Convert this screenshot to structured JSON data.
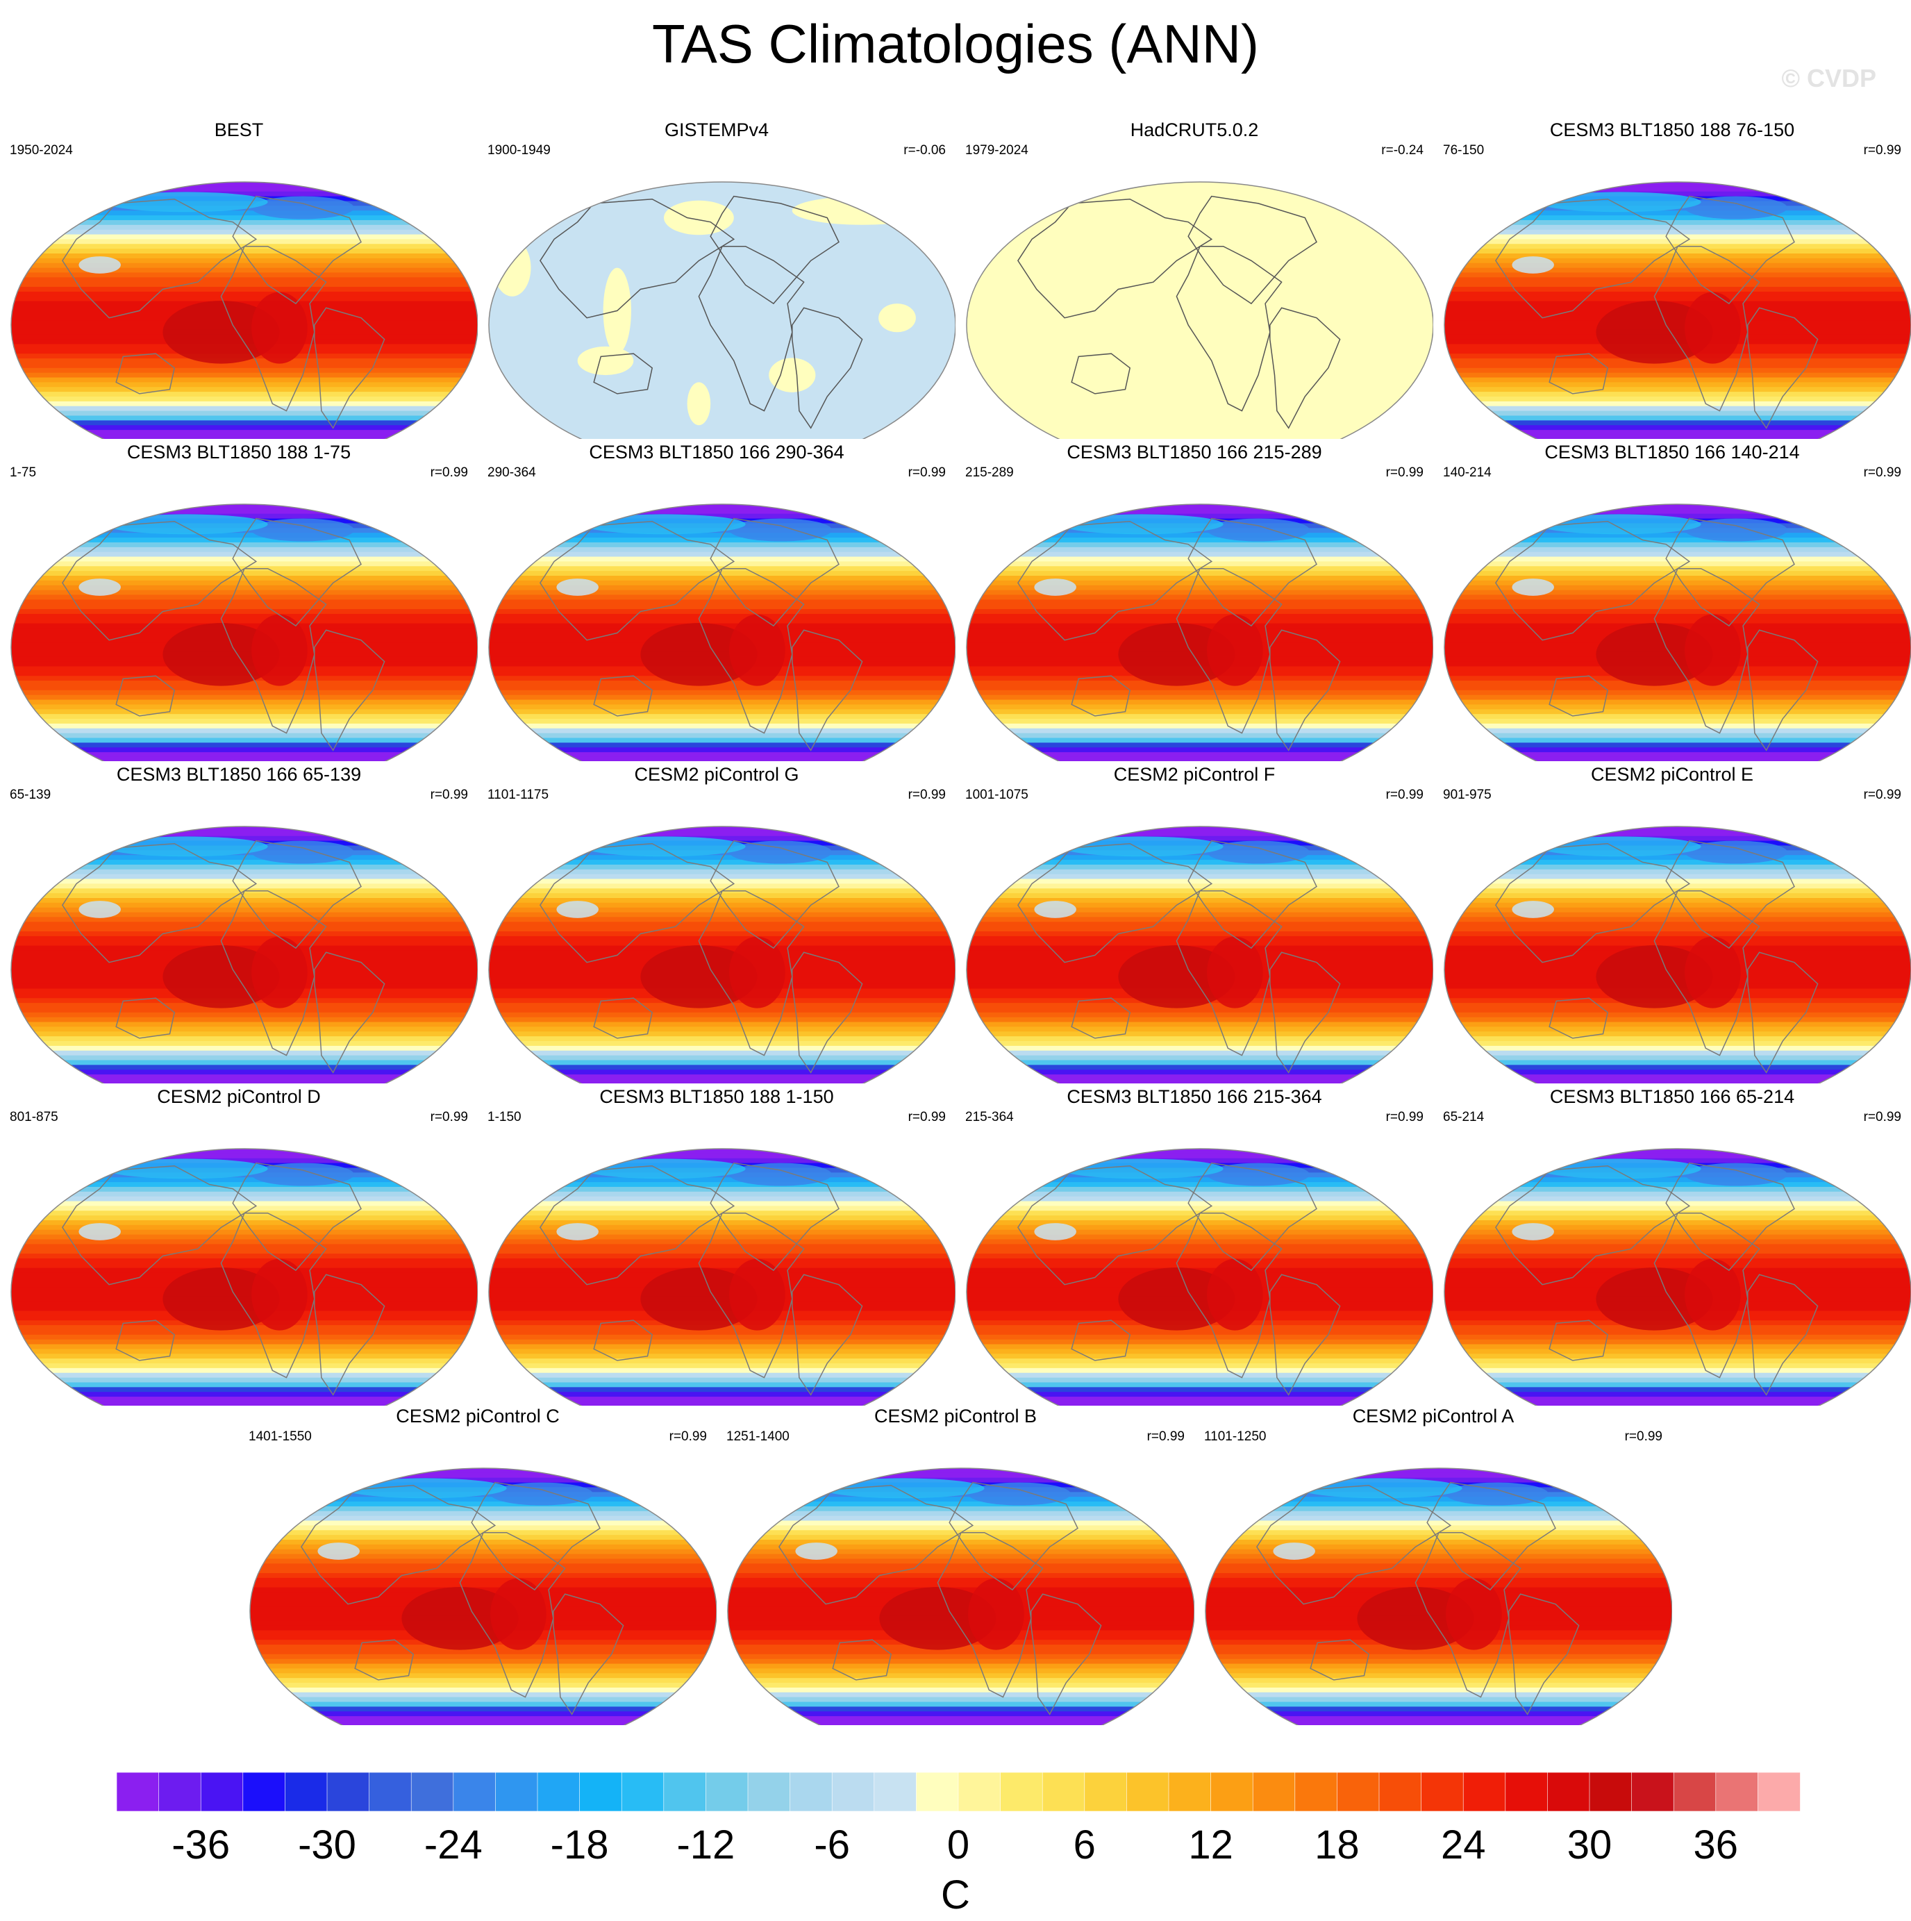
{
  "title": "TAS Climatologies (ANN)",
  "watermark": "© CVDP",
  "panels": [
    {
      "name": "BEST",
      "years": "1950-2024",
      "r": "",
      "field": "model"
    },
    {
      "name": "GISTEMPv4",
      "years": "1900-1949",
      "r": "r=-0.06",
      "field": "gistemp"
    },
    {
      "name": "HadCRUT5.0.2",
      "years": "1979-2024",
      "r": "r=-0.24",
      "field": "hadcrut"
    },
    {
      "name": "CESM3 BLT1850 188 76-150",
      "years": "76-150",
      "r": "r=0.99",
      "field": "model"
    },
    {
      "name": "CESM3 BLT1850 188 1-75",
      "years": "1-75",
      "r": "r=0.99",
      "field": "model"
    },
    {
      "name": "CESM3 BLT1850 166 290-364",
      "years": "290-364",
      "r": "r=0.99",
      "field": "model"
    },
    {
      "name": "CESM3 BLT1850 166 215-289",
      "years": "215-289",
      "r": "r=0.99",
      "field": "model"
    },
    {
      "name": "CESM3 BLT1850 166 140-214",
      "years": "140-214",
      "r": "r=0.99",
      "field": "model"
    },
    {
      "name": "CESM3 BLT1850 166 65-139",
      "years": "65-139",
      "r": "r=0.99",
      "field": "model"
    },
    {
      "name": "CESM2 piControl G",
      "years": "1101-1175",
      "r": "r=0.99",
      "field": "model"
    },
    {
      "name": "CESM2 piControl F",
      "years": "1001-1075",
      "r": "r=0.99",
      "field": "model"
    },
    {
      "name": "CESM2 piControl E",
      "years": "901-975",
      "r": "r=0.99",
      "field": "model"
    },
    {
      "name": "CESM2 piControl D",
      "years": "801-875",
      "r": "r=0.99",
      "field": "model"
    },
    {
      "name": "CESM3 BLT1850 188 1-150",
      "years": "1-150",
      "r": "r=0.99",
      "field": "model"
    },
    {
      "name": "CESM3 BLT1850 166 215-364",
      "years": "215-364",
      "r": "r=0.99",
      "field": "model"
    },
    {
      "name": "CESM3 BLT1850 166 65-214",
      "years": "65-214",
      "r": "r=0.99",
      "field": "model"
    },
    {
      "name": "CESM2 piControl C",
      "years": "1401-1550",
      "r": "r=0.99",
      "field": "model"
    },
    {
      "name": "CESM2 piControl B",
      "years": "1251-1400",
      "r": "r=0.99",
      "field": "model"
    },
    {
      "name": "CESM2 piControl A",
      "years": "1101-1250",
      "r": "r=0.99",
      "field": "model"
    }
  ],
  "chart_data": {
    "type": "heatmap",
    "projection": "Robinson",
    "units": "C",
    "colorbar": {
      "label": "C",
      "levels": [
        -40,
        -38,
        -36,
        -34,
        -32,
        -30,
        -28,
        -26,
        -24,
        -22,
        -20,
        -18,
        -16,
        -14,
        -12,
        -10,
        -8,
        -6,
        -4,
        -2,
        0,
        2,
        4,
        6,
        8,
        10,
        12,
        14,
        16,
        18,
        20,
        22,
        24,
        26,
        28,
        30,
        32,
        34,
        36,
        38,
        40,
        42,
        44
      ],
      "tick_labels": [
        "-36",
        "-30",
        "-24",
        "-18",
        "-12",
        "-6",
        "0",
        "6",
        "12",
        "18",
        "24",
        "30",
        "36"
      ],
      "colors": [
        "#8b1ff0",
        "#6d1cf0",
        "#4a14f3",
        "#1b0ffb",
        "#1a2be8",
        "#2a45dc",
        "#3560de",
        "#3f6fdc",
        "#3a85ea",
        "#2f96f0",
        "#20a6f5",
        "#14b3f7",
        "#28bcf5",
        "#50c5ee",
        "#74ccea",
        "#94d2ea",
        "#aad7ee",
        "#bbdcf0",
        "#c8e2f2",
        "#fffebe",
        "#fff59a",
        "#fdea6a",
        "#fde054",
        "#fcd23c",
        "#fcc32a",
        "#fcb11c",
        "#fc9f14",
        "#fb8c10",
        "#fa780c",
        "#f9630a",
        "#f74e08",
        "#f43507",
        "#f01e07",
        "#e60f08",
        "#d90a0a",
        "#c80b0b",
        "#c9121b",
        "#d84646",
        "#ea7474",
        "#fcaaaa"
      ]
    },
    "series": [
      {
        "name": "BEST",
        "period": "1950-2024",
        "pattern_correlation": null
      },
      {
        "name": "GISTEMPv4",
        "period": "1900-1949",
        "pattern_correlation": -0.06
      },
      {
        "name": "HadCRUT5.0.2",
        "period": "1979-2024",
        "pattern_correlation": -0.24
      },
      {
        "name": "CESM3 BLT1850 188 76-150",
        "period": "76-150",
        "pattern_correlation": 0.99
      },
      {
        "name": "CESM3 BLT1850 188 1-75",
        "period": "1-75",
        "pattern_correlation": 0.99
      },
      {
        "name": "CESM3 BLT1850 166 290-364",
        "period": "290-364",
        "pattern_correlation": 0.99
      },
      {
        "name": "CESM3 BLT1850 166 215-289",
        "period": "215-289",
        "pattern_correlation": 0.99
      },
      {
        "name": "CESM3 BLT1850 166 140-214",
        "period": "140-214",
        "pattern_correlation": 0.99
      },
      {
        "name": "CESM3 BLT1850 166 65-139",
        "period": "65-139",
        "pattern_correlation": 0.99
      },
      {
        "name": "CESM2 piControl G",
        "period": "1101-1175",
        "pattern_correlation": 0.99
      },
      {
        "name": "CESM2 piControl F",
        "period": "1001-1075",
        "pattern_correlation": 0.99
      },
      {
        "name": "CESM2 piControl E",
        "period": "901-975",
        "pattern_correlation": 0.99
      },
      {
        "name": "CESM2 piControl D",
        "period": "801-875",
        "pattern_correlation": 0.99
      },
      {
        "name": "CESM3 BLT1850 188 1-150",
        "period": "1-150",
        "pattern_correlation": 0.99
      },
      {
        "name": "CESM3 BLT1850 166 215-364",
        "period": "215-364",
        "pattern_correlation": 0.99
      },
      {
        "name": "CESM3 BLT1850 166 65-214",
        "period": "65-214",
        "pattern_correlation": 0.99
      },
      {
        "name": "CESM2 piControl C",
        "period": "1401-1550",
        "pattern_correlation": 0.99
      },
      {
        "name": "CESM2 piControl B",
        "period": "1251-1400",
        "pattern_correlation": 0.99
      },
      {
        "name": "CESM2 piControl A",
        "period": "1101-1250",
        "pattern_correlation": 0.99
      }
    ]
  }
}
